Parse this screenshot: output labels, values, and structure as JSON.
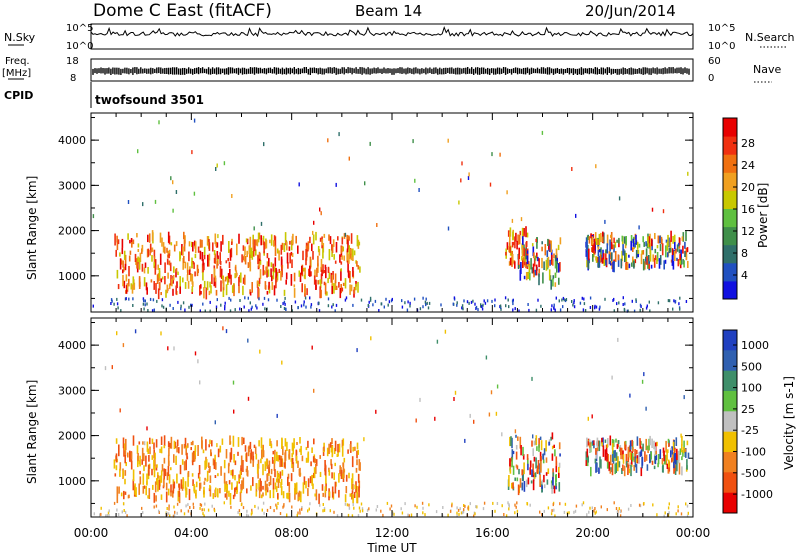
{
  "header": {
    "station": "Dome C East (fitACF)",
    "beam": "Beam 14",
    "date": "20/Jun/2014"
  },
  "nsky_panel": {
    "left_label": "N.Sky",
    "left_ticks": [
      "10^5",
      "10^0"
    ],
    "right_label": "N.Search",
    "right_ticks": [
      "10^5",
      "10^0"
    ]
  },
  "freq_panel": {
    "left_label_1": "Freq.",
    "left_label_2": "[MHz]",
    "left_ticks": [
      "18",
      "8"
    ],
    "right_label": "Nave",
    "right_ticks": [
      "60",
      "0"
    ]
  },
  "cpid": {
    "label": "CPID",
    "program": "twofsound 3501"
  },
  "chart_data": [
    {
      "type": "heatmap",
      "name": "power",
      "xlabel": "",
      "ylabel": "Slant Range [km]",
      "xlim": [
        0,
        24
      ],
      "ylim": [
        200,
        4600
      ],
      "y_ticks": [
        1000,
        2000,
        3000,
        4000
      ],
      "colorbar": {
        "label": "Power [dB]",
        "ticks": [
          "4",
          "8",
          "12",
          "16",
          "20",
          "24",
          "28"
        ],
        "colors": [
          "#1010e0",
          "#2050c0",
          "#2f6f6a",
          "#3f8f4a",
          "#5fc040",
          "#c8c800",
          "#f0a020",
          "#f07010",
          "#f03010",
          "#e80000"
        ]
      },
      "echo_regions": [
        {
          "t_start": 0.9,
          "t_end": 10.7,
          "range_min": 600,
          "range_max": 1900,
          "level": "high"
        },
        {
          "t_start": 16.5,
          "t_end": 17.4,
          "range_min": 1200,
          "range_max": 2000,
          "level": "high"
        },
        {
          "t_start": 17.0,
          "t_end": 18.7,
          "range_min": 800,
          "range_max": 1800,
          "level": "medium"
        },
        {
          "t_start": 19.7,
          "t_end": 23.8,
          "range_min": 1200,
          "range_max": 1900,
          "level": "medium"
        }
      ]
    },
    {
      "type": "heatmap",
      "name": "velocity",
      "xlabel": "Time UT",
      "ylabel": "Slant Range [km]",
      "xlim": [
        0,
        24
      ],
      "ylim": [
        200,
        4600
      ],
      "x_ticks": [
        "00:00",
        "04:00",
        "08:00",
        "12:00",
        "16:00",
        "20:00",
        "00:00"
      ],
      "y_ticks": [
        1000,
        2000,
        3000,
        4000
      ],
      "colorbar": {
        "label": "Velocity [m s-1]",
        "ticks": [
          "1000",
          "500",
          "100",
          "25",
          "-25",
          "-100",
          "-500",
          "-1000"
        ],
        "colors": [
          "#2040c0",
          "#3060b0",
          "#3f8f6a",
          "#60c040",
          "#c0c0c0",
          "#f0c000",
          "#f08020",
          "#f05010",
          "#e80000"
        ]
      },
      "echo_regions": [
        {
          "t_start": 0.9,
          "t_end": 10.7,
          "range_min": 600,
          "range_max": 1900,
          "level": "negative"
        },
        {
          "t_start": 16.5,
          "t_end": 18.7,
          "range_min": 800,
          "range_max": 2000,
          "level": "mixed"
        },
        {
          "t_start": 19.7,
          "t_end": 23.8,
          "range_min": 1200,
          "range_max": 1900,
          "level": "mixed"
        }
      ]
    }
  ]
}
